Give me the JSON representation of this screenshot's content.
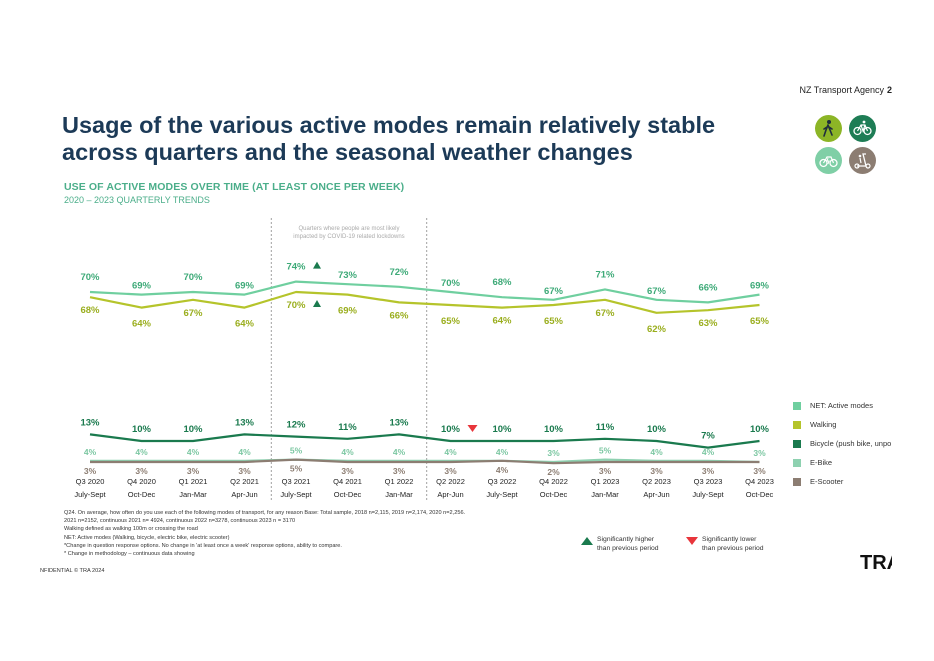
{
  "header": {
    "brand": "NZ Transport Agency",
    "page_number": "2",
    "title_line1": "Usage of the various active modes remain relatively stable",
    "title_line2": "across quarters and the seasonal weather changes",
    "subtitle": "USE OF ACTIVE MODES OVER TIME (AT LEAST ONCE PER WEEK)",
    "subtitle2": "2020 – 2023 QUARTERLY TRENDS"
  },
  "icons": [
    {
      "name": "walking-icon",
      "color": "#8cb526"
    },
    {
      "name": "bicycle-icon",
      "color": "#1e7d55"
    },
    {
      "name": "e-bike-icon",
      "color": "#7fcfa6"
    },
    {
      "name": "e-scooter-icon",
      "color": "#8c7d72"
    }
  ],
  "chart_data": {
    "type": "line",
    "x": [
      "Q3 2020",
      "Q4 2020",
      "Q1 2021",
      "Q2 2021",
      "Q3 2021",
      "Q4 2021",
      "Q1 2022",
      "Q2 2022",
      "Q3 2022",
      "Q4 2022",
      "Q1 2023",
      "Q2 2023",
      "Q3 2023",
      "Q4 2023"
    ],
    "x_sub": [
      "July-Sept",
      "Oct-Dec",
      "Jan-Mar",
      "Apr-Jun",
      "July-Sept",
      "Oct-Dec",
      "Jan-Mar",
      "Apr-Jun",
      "July-Sept",
      "Oct-Dec",
      "Jan-Mar",
      "Apr-Jun",
      "July-Sept",
      "Oct-Dec"
    ],
    "series": [
      {
        "name": "NET: Active modes",
        "color": "#6fcf9f",
        "label_color": "#3eaa78",
        "values": [
          70,
          69,
          70,
          69,
          74,
          73,
          72,
          70,
          68,
          67,
          71,
          67,
          66,
          69
        ]
      },
      {
        "name": "Walking",
        "color": "#b5c42b",
        "label_color": "#9aae1e",
        "values": [
          68,
          64,
          67,
          64,
          70,
          69,
          66,
          65,
          64,
          65,
          67,
          62,
          63,
          65
        ]
      },
      {
        "name": "Bicycle (push bike, unpowered)",
        "color": "#1a7a4e",
        "label_color": "#1a7a4e",
        "values": [
          13,
          10,
          10,
          13,
          12,
          11,
          13,
          10,
          10,
          10,
          11,
          10,
          7,
          10
        ]
      },
      {
        "name": "E-Bike",
        "color": "#8ed1b0",
        "label_color": "#7cc7a2",
        "values": [
          4,
          4,
          4,
          4,
          5,
          4,
          4,
          4,
          4,
          3,
          5,
          4,
          4,
          3
        ]
      },
      {
        "name": "E-Scooter",
        "color": "#8c7d72",
        "label_color": "#8c7d72",
        "values": [
          3,
          3,
          3,
          3,
          5,
          3,
          3,
          3,
          4,
          2,
          3,
          3,
          3,
          3
        ]
      }
    ],
    "significant_higher": [
      {
        "series": 0,
        "index": 4
      },
      {
        "series": 1,
        "index": 4
      }
    ],
    "significant_lower": [
      {
        "series": 2,
        "index": 7
      }
    ],
    "covid_band": {
      "from_index": 4,
      "to_index": 6
    },
    "covid_note_line1": "Quarters where people are most likely",
    "covid_note_line2": "impacted by COVID-19 related lockdowns"
  },
  "legend": [
    "NET: Active modes",
    "Walking",
    "Bicycle (push bike, unpo",
    "E-Bike",
    "E-Scooter"
  ],
  "significance": {
    "higher_line1": "Significantly higher",
    "higher_line2": "than previous period",
    "lower_line1": "Significantly lower",
    "lower_line2": "than previous period",
    "higher_color": "#1a7a4e",
    "lower_color": "#e8353b"
  },
  "footnote": [
    "Q24. On average, how often do you use each of the following modes of transport, for any reason Base: Total sample, 2018 n=2,115, 2019   n=2,174, 2020 n=2,256.",
    "2021 n=2152, continuous 2021 n= 4924, continuous 2022 n=3278, continuous 2023 n = 3170",
    "Walking defined as walking 100m or crossing the road",
    "NET: Active modes (Walking, bicycle, electric bike, electric scooter)",
    "*Change in question response options. No change in 'at least once a week' response options, ability to compare.",
    "*  Change in methodology – continuous data showing"
  ],
  "confidential": "NFIDENTIAL © TRA 2024",
  "logo": "TRA"
}
